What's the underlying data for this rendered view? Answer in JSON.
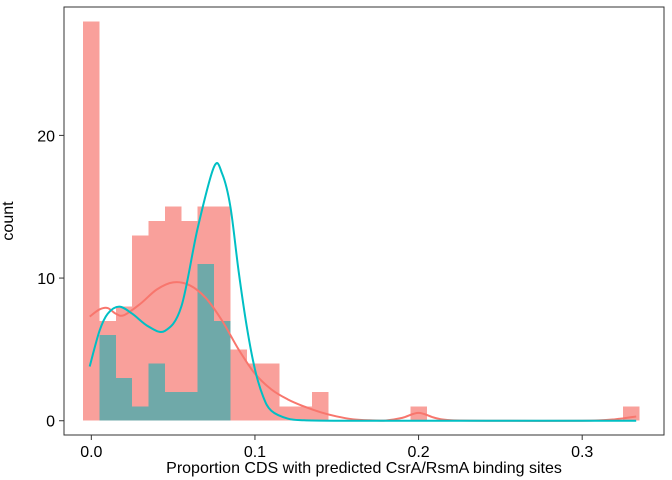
{
  "chart_data": {
    "type": "histogram",
    "title": "",
    "xlabel": "Proportion CDS with predicted CsrA/RsmA binding sites",
    "ylabel": "count",
    "xlim": [
      -0.0167,
      0.35
    ],
    "ylim": [
      -1,
      29
    ],
    "grid": false,
    "legend": "none",
    "x_ticks": [
      {
        "value": 0.0,
        "label": "0.0"
      },
      {
        "value": 0.1,
        "label": "0.1"
      },
      {
        "value": 0.2,
        "label": "0.2"
      },
      {
        "value": 0.3,
        "label": "0.3"
      }
    ],
    "y_ticks": [
      {
        "value": 0,
        "label": "0"
      },
      {
        "value": 10,
        "label": "10"
      },
      {
        "value": 20,
        "label": "20"
      }
    ],
    "bin_width": 0.01,
    "bin_centers": [
      0.0,
      0.01,
      0.02,
      0.03,
      0.04,
      0.05,
      0.06,
      0.07,
      0.08,
      0.09,
      0.1,
      0.11,
      0.12,
      0.13,
      0.14,
      0.15,
      0.16,
      0.17,
      0.18,
      0.19,
      0.2,
      0.21,
      0.22,
      0.23,
      0.24,
      0.25,
      0.26,
      0.27,
      0.28,
      0.29,
      0.3,
      0.31,
      0.32,
      0.33
    ],
    "series": [
      {
        "color": "#F8766D",
        "fill": "#F9A09B",
        "counts": [
          28,
          7,
          8,
          13,
          14,
          15,
          14,
          15,
          15,
          5,
          4,
          4,
          1,
          1,
          2,
          0,
          0,
          0,
          0,
          0,
          1,
          0,
          0,
          0,
          0,
          0,
          0,
          0,
          0,
          0,
          0,
          0,
          0,
          1
        ],
        "density_curve_y": [
          [
            -0.001,
            7.3
          ],
          [
            0.005,
            7.8
          ],
          [
            0.01,
            7.9
          ],
          [
            0.015,
            7.5
          ],
          [
            0.02,
            7.4
          ],
          [
            0.03,
            8.2
          ],
          [
            0.04,
            9.2
          ],
          [
            0.05,
            9.7
          ],
          [
            0.06,
            9.5
          ],
          [
            0.07,
            8.6
          ],
          [
            0.08,
            7.0
          ],
          [
            0.09,
            5.0
          ],
          [
            0.1,
            3.3
          ],
          [
            0.11,
            2.2
          ],
          [
            0.12,
            1.5
          ],
          [
            0.13,
            1.0
          ],
          [
            0.14,
            0.6
          ],
          [
            0.15,
            0.3
          ],
          [
            0.16,
            0.1
          ],
          [
            0.17,
            0.03
          ],
          [
            0.18,
            0.02
          ],
          [
            0.19,
            0.2
          ],
          [
            0.2,
            0.55
          ],
          [
            0.21,
            0.2
          ],
          [
            0.22,
            0.03
          ],
          [
            0.25,
            0.0
          ],
          [
            0.3,
            0.0
          ],
          [
            0.32,
            0.1
          ],
          [
            0.333,
            0.3
          ]
        ]
      },
      {
        "color": "#00BFC4",
        "fill": "#6FA9A9",
        "counts": [
          0,
          6,
          3,
          1,
          4,
          2,
          2,
          11,
          7,
          0,
          0,
          0,
          0,
          0,
          0,
          0,
          0,
          0,
          0,
          0,
          0,
          0,
          0,
          0,
          0,
          0,
          0,
          0,
          0,
          0,
          0,
          0,
          0,
          0
        ],
        "density_curve_y": [
          [
            -0.001,
            3.8
          ],
          [
            0.005,
            6.3
          ],
          [
            0.01,
            7.5
          ],
          [
            0.017,
            8.0
          ],
          [
            0.025,
            7.5
          ],
          [
            0.035,
            6.6
          ],
          [
            0.045,
            6.3
          ],
          [
            0.055,
            8.0
          ],
          [
            0.065,
            13.5
          ],
          [
            0.075,
            17.8
          ],
          [
            0.08,
            17.3
          ],
          [
            0.085,
            15.0
          ],
          [
            0.09,
            10.5
          ],
          [
            0.095,
            6.6
          ],
          [
            0.1,
            3.6
          ],
          [
            0.105,
            1.7
          ],
          [
            0.11,
            0.7
          ],
          [
            0.12,
            0.15
          ],
          [
            0.13,
            0.03
          ],
          [
            0.15,
            0.0
          ],
          [
            0.2,
            0.0
          ],
          [
            0.3,
            0.0
          ],
          [
            0.333,
            0.0
          ]
        ]
      }
    ]
  }
}
